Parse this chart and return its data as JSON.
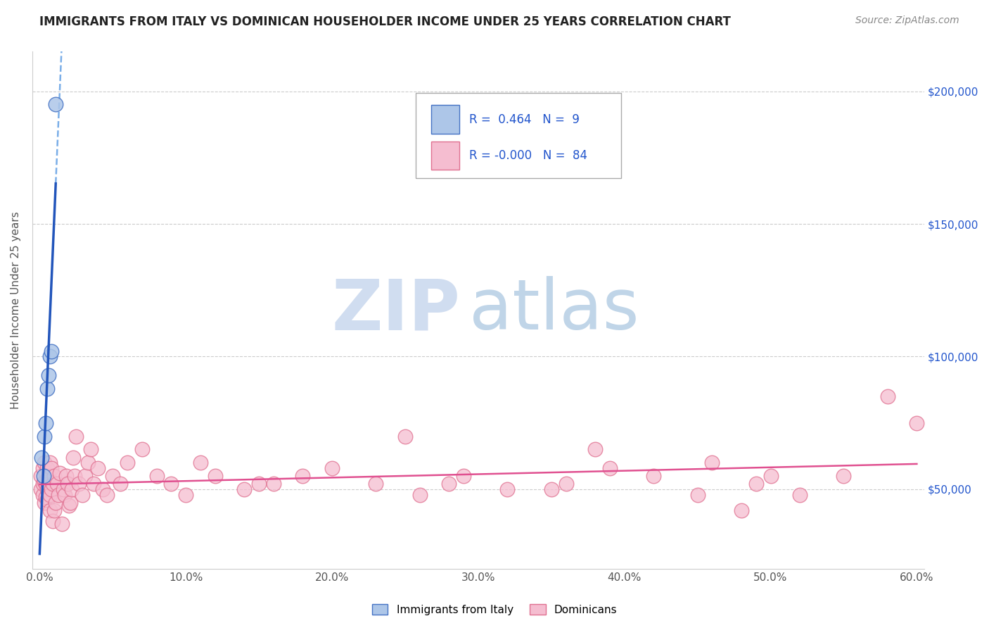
{
  "title": "IMMIGRANTS FROM ITALY VS DOMINICAN HOUSEHOLDER INCOME UNDER 25 YEARS CORRELATION CHART",
  "source": "Source: ZipAtlas.com",
  "ylabel": "Householder Income Under 25 years",
  "xlim": [
    -0.005,
    0.605
  ],
  "ylim": [
    20000,
    215000
  ],
  "xticks": [
    0.0,
    0.1,
    0.2,
    0.3,
    0.4,
    0.5,
    0.6
  ],
  "xticklabels": [
    "0.0%",
    "10.0%",
    "20.0%",
    "30.0%",
    "40.0%",
    "50.0%",
    "60.0%"
  ],
  "yticks": [
    50000,
    100000,
    150000,
    200000
  ],
  "yticklabels_right": [
    "$50,000",
    "$100,000",
    "$150,000",
    "$200,000"
  ],
  "italy_color": "#adc6e8",
  "italy_edge": "#4472c4",
  "dominican_color": "#f5bdd0",
  "dominican_edge": "#e07090",
  "italy_line_color": "#2255bb",
  "italy_line_dash_color": "#7aaee8",
  "dominican_line_color": "#e05090",
  "legend_italy_R": "0.464",
  "legend_italy_N": "9",
  "legend_dominican_R": "-0.000",
  "legend_dominican_N": "84",
  "watermark_zip": "ZIP",
  "watermark_atlas": "atlas",
  "watermark_color_zip": "#d0ddf0",
  "watermark_color_atlas": "#c0d5e8",
  "grid_color": "#cccccc",
  "background_color": "#ffffff",
  "italy_x": [
    0.0015,
    0.0025,
    0.003,
    0.004,
    0.005,
    0.006,
    0.007,
    0.008,
    0.011
  ],
  "italy_y": [
    62000,
    55000,
    70000,
    75000,
    88000,
    93000,
    100000,
    102000,
    195000
  ],
  "dominican_x": [
    0.001,
    0.001,
    0.002,
    0.002,
    0.002,
    0.003,
    0.003,
    0.003,
    0.004,
    0.004,
    0.004,
    0.005,
    0.005,
    0.005,
    0.005,
    0.006,
    0.006,
    0.007,
    0.007,
    0.007,
    0.008,
    0.008,
    0.009,
    0.009,
    0.01,
    0.01,
    0.011,
    0.012,
    0.013,
    0.014,
    0.015,
    0.016,
    0.017,
    0.018,
    0.019,
    0.02,
    0.021,
    0.022,
    0.023,
    0.024,
    0.025,
    0.027,
    0.029,
    0.031,
    0.033,
    0.035,
    0.037,
    0.04,
    0.043,
    0.046,
    0.05,
    0.055,
    0.06,
    0.07,
    0.08,
    0.09,
    0.1,
    0.11,
    0.12,
    0.14,
    0.16,
    0.18,
    0.2,
    0.23,
    0.26,
    0.29,
    0.32,
    0.36,
    0.39,
    0.42,
    0.46,
    0.49,
    0.52,
    0.55,
    0.58,
    0.6,
    0.15,
    0.25,
    0.35,
    0.45,
    0.5,
    0.28,
    0.38,
    0.48
  ],
  "dominican_y": [
    55000,
    50000,
    48000,
    52000,
    58000,
    53000,
    60000,
    45000,
    56000,
    52000,
    47000,
    54000,
    50000,
    46000,
    58000,
    52000,
    55000,
    48000,
    42000,
    60000,
    50000,
    58000,
    52000,
    38000,
    55000,
    42000,
    45000,
    52000,
    48000,
    56000,
    37000,
    50000,
    48000,
    55000,
    52000,
    44000,
    45000,
    50000,
    62000,
    55000,
    70000,
    52000,
    48000,
    55000,
    60000,
    65000,
    52000,
    58000,
    50000,
    48000,
    55000,
    52000,
    60000,
    65000,
    55000,
    52000,
    48000,
    60000,
    55000,
    50000,
    52000,
    55000,
    58000,
    52000,
    48000,
    55000,
    50000,
    52000,
    58000,
    55000,
    60000,
    52000,
    48000,
    55000,
    85000,
    75000,
    52000,
    70000,
    50000,
    48000,
    55000,
    52000,
    65000,
    42000
  ]
}
